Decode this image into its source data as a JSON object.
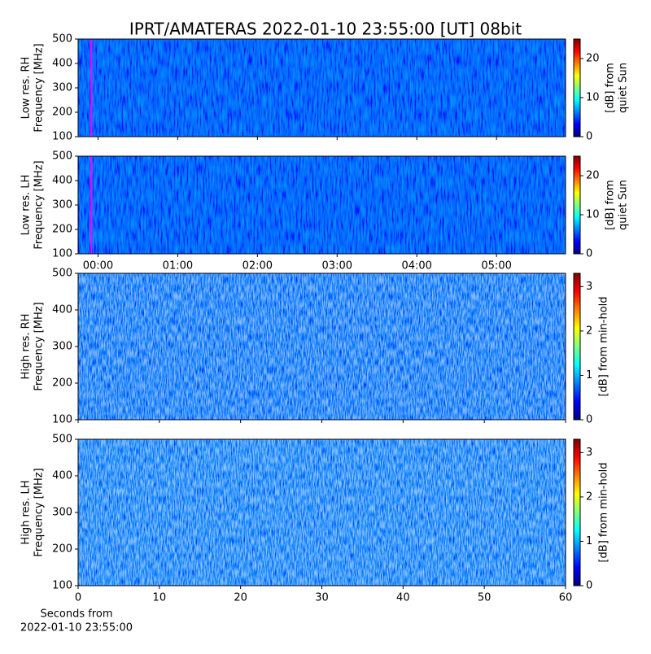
{
  "title": "IPRT/AMATERAS 2022-01-10 23:55:00 [UT]   08bit",
  "chart_data": [
    {
      "type": "spectrogram",
      "colormap": "jet",
      "ylabel": [
        "Low res. RH",
        "Frequency [MHz]"
      ],
      "ylim": [
        100,
        500
      ],
      "yticks": [
        100,
        200,
        300,
        400,
        500
      ],
      "xlim": [
        -15,
        352
      ],
      "xticks": [
        0,
        60,
        120,
        180,
        240,
        300
      ],
      "show_xticklabels": false,
      "marker_x": -5,
      "marker_color": "#ff00ff",
      "clim": [
        0,
        25
      ],
      "cticks": [
        0,
        10,
        20
      ],
      "clabel": [
        "[dB] from",
        "quiet Sun"
      ]
    },
    {
      "type": "spectrogram",
      "colormap": "jet",
      "ylabel": [
        "Low res. LH",
        "Frequency [MHz]"
      ],
      "ylim": [
        100,
        500
      ],
      "yticks": [
        100,
        200,
        300,
        400,
        500
      ],
      "xlim": [
        -15,
        352
      ],
      "xticks": [
        {
          "value": 0,
          "label": "00:00"
        },
        {
          "value": 60,
          "label": "01:00"
        },
        {
          "value": 120,
          "label": "02:00"
        },
        {
          "value": 180,
          "label": "03:00"
        },
        {
          "value": 240,
          "label": "04:00"
        },
        {
          "value": 300,
          "label": "05:00"
        }
      ],
      "show_xticklabels": true,
      "marker_x": -5,
      "marker_color": "#ff00ff",
      "clim": [
        0,
        25
      ],
      "cticks": [
        0,
        10,
        20
      ],
      "clabel": [
        "[dB] from",
        "quiet Sun"
      ]
    },
    {
      "type": "spectrogram",
      "colormap": "jet",
      "ylabel": [
        "High res. RH",
        "Frequency [MHz]"
      ],
      "ylim": [
        100,
        500
      ],
      "yticks": [
        100,
        200,
        300,
        400,
        500
      ],
      "xlim": [
        0,
        60
      ],
      "xticks": [
        0,
        10,
        20,
        30,
        40,
        50,
        60
      ],
      "show_xticklabels": false,
      "clim": [
        0,
        3.3
      ],
      "cticks": [
        0,
        1,
        2,
        3
      ],
      "clabel": [
        "[dB] from min-hold"
      ]
    },
    {
      "type": "spectrogram",
      "colormap": "jet",
      "ylabel": [
        "High res. LH",
        "Frequency [MHz]"
      ],
      "ylim": [
        100,
        500
      ],
      "yticks": [
        100,
        200,
        300,
        400,
        500
      ],
      "xlim": [
        0,
        60
      ],
      "xticks": [
        0,
        10,
        20,
        30,
        40,
        50,
        60
      ],
      "show_xticklabels": true,
      "xlabel": [
        "Seconds from",
        "2022-01-10 23:55:00"
      ],
      "clim": [
        0,
        3.3
      ],
      "cticks": [
        0,
        1,
        2,
        3
      ],
      "clabel": [
        "[dB] from min-hold"
      ]
    }
  ]
}
